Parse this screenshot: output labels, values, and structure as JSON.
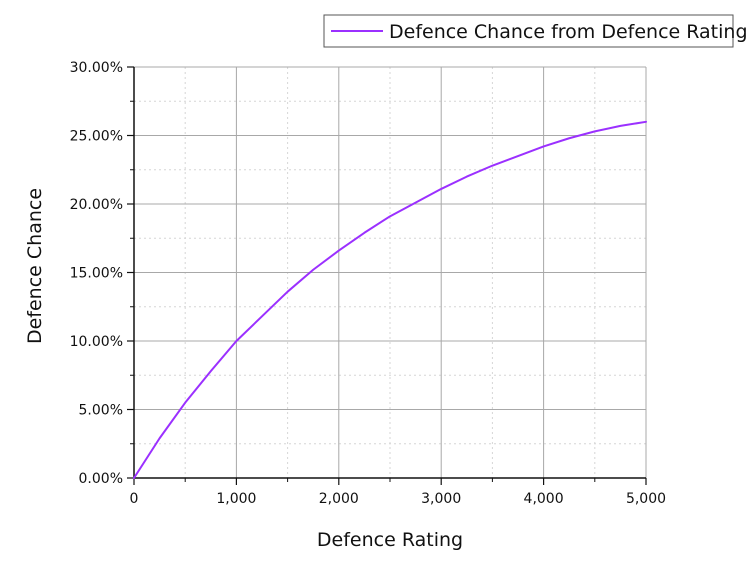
{
  "chart_data": {
    "type": "line",
    "xlabel": "Defence Rating",
    "ylabel": "Defence Chance",
    "xlim": [
      0,
      5000
    ],
    "ylim": [
      0,
      30
    ],
    "x_ticks": [
      0,
      1000,
      2000,
      3000,
      4000,
      5000
    ],
    "x_tick_labels": [
      "0",
      "1,000",
      "2,000",
      "3,000",
      "4,000",
      "5,000"
    ],
    "y_ticks": [
      0,
      5,
      10,
      15,
      20,
      25,
      30
    ],
    "y_tick_labels": [
      "0.00%",
      "5.00%",
      "10.00%",
      "15.00%",
      "20.00%",
      "25.00%",
      "30.00%"
    ],
    "grid": true,
    "legend_position": "top-right",
    "series": [
      {
        "name": "Defence Chance from Defence Rating",
        "color": "#9b30ff",
        "x": [
          0,
          250,
          500,
          750,
          1000,
          1250,
          1500,
          1750,
          2000,
          2250,
          2500,
          2750,
          3000,
          3250,
          3500,
          3750,
          4000,
          4250,
          4500,
          4750,
          5000
        ],
        "y": [
          0.0,
          2.9,
          5.5,
          7.8,
          10.0,
          11.8,
          13.6,
          15.2,
          16.6,
          17.9,
          19.1,
          20.1,
          21.1,
          22.0,
          22.8,
          23.5,
          24.2,
          24.8,
          25.3,
          25.7,
          26.0
        ]
      }
    ]
  }
}
